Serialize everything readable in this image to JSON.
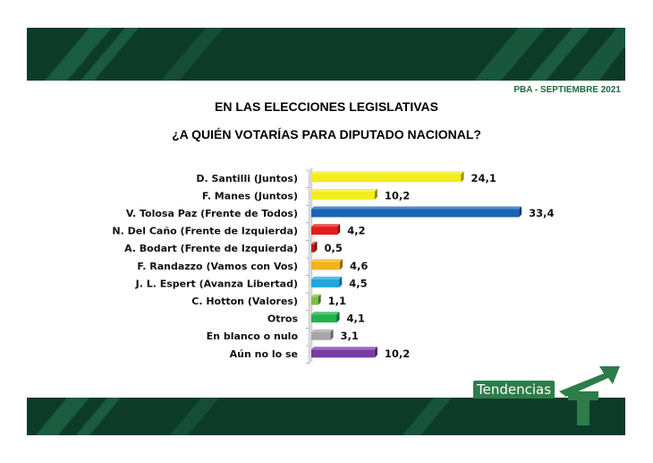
{
  "header": {
    "date": "PBA - SEPTIEMBRE 2021"
  },
  "title_line1": "EN  LAS ELECCIONES LEGISLATIVAS",
  "title_line2": "¿A QUIÉN VOTARÍAS PARA DIPUTADO NACIONAL?",
  "brand": {
    "name": "Tendencias",
    "color": "#2c7d4a",
    "banner_color": "#0d3b2a"
  },
  "chart_data": {
    "type": "bar",
    "orientation": "horizontal",
    "categories": [
      "D. Santilli (Juntos)",
      "F. Manes (Juntos)",
      "V. Tolosa Paz (Frente de Todos)",
      "N. Del Caño (Frente de Izquierda)",
      "A. Bodart (Frente de Izquierda)",
      "F. Randazzo (Vamos con Vos)",
      "J. L. Espert (Avanza Libertad)",
      "C. Hotton (Valores)",
      "Otros",
      "En blanco o nulo",
      "Aún no lo se"
    ],
    "values": [
      24.1,
      10.2,
      33.4,
      4.2,
      0.5,
      4.6,
      4.5,
      1.1,
      4.1,
      3.1,
      10.2
    ],
    "labels": [
      "24,1",
      "10,2",
      "33,4",
      "4,2",
      "0,5",
      "4,6",
      "4,5",
      "1,1",
      "4,1",
      "3,1",
      "10,2"
    ],
    "colors": [
      "#f2ee1a",
      "#f2ee1a",
      "#1b63b5",
      "#e21b1b",
      "#c81818",
      "#f2b21a",
      "#1ea6df",
      "#7cc043",
      "#22b24c",
      "#a6a6a6",
      "#7a3aa8"
    ],
    "xlim": [
      0,
      35
    ],
    "grid": false,
    "legend": "none"
  }
}
